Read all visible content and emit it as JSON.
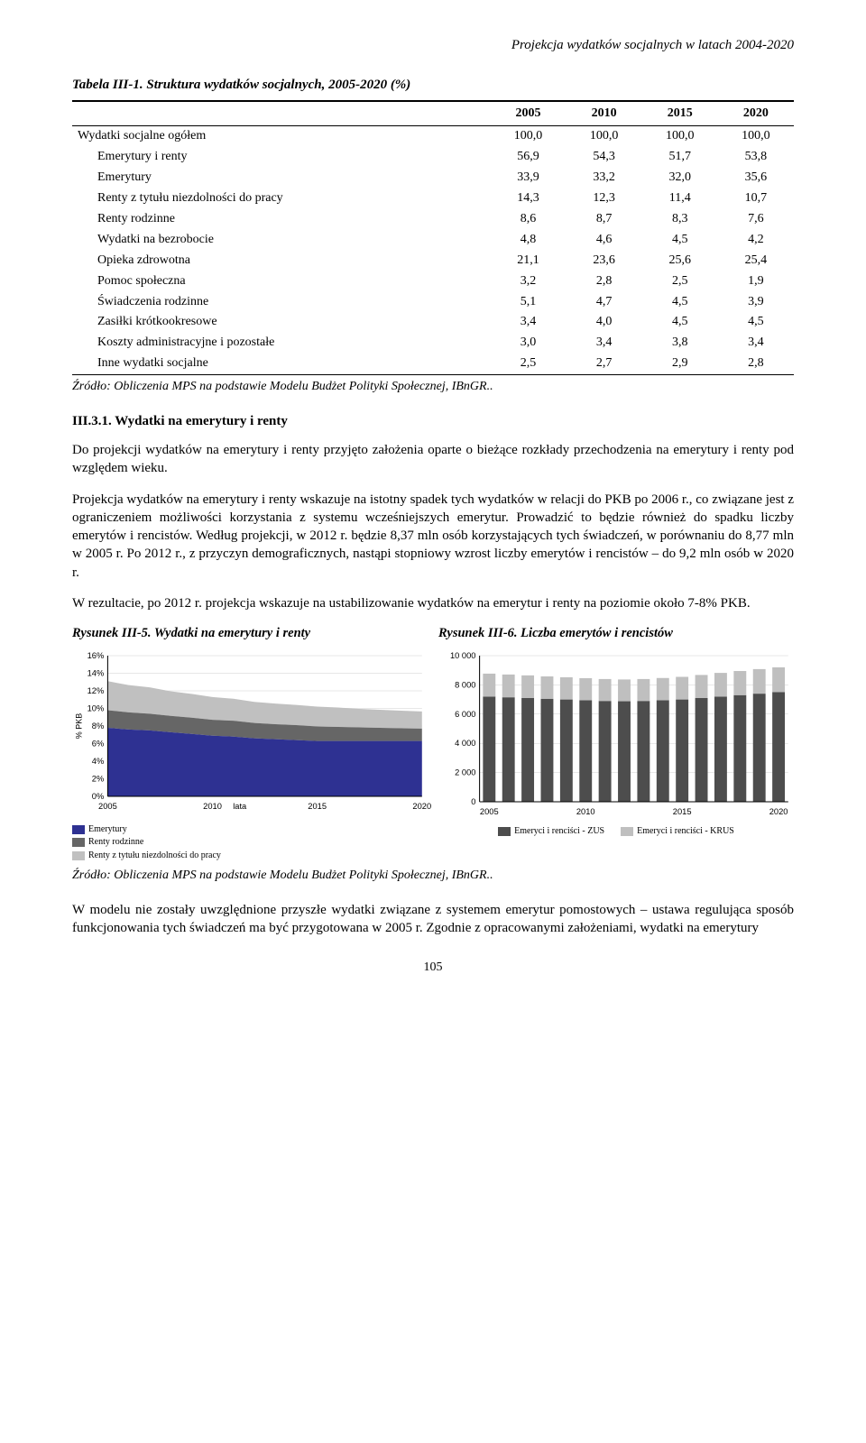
{
  "header": {
    "title": "Projekcja wydatków socjalnych w latach 2004-2020"
  },
  "table": {
    "caption": "Tabela III-1. Struktura wydatków socjalnych, 2005-2020 (%)",
    "columns": [
      "2005",
      "2010",
      "2015",
      "2020"
    ],
    "rows": [
      {
        "label": "Wydatki socjalne ogółem",
        "indent": false,
        "vals": [
          "100,0",
          "100,0",
          "100,0",
          "100,0"
        ]
      },
      {
        "label": "Emerytury i renty",
        "indent": true,
        "vals": [
          "56,9",
          "54,3",
          "51,7",
          "53,8"
        ]
      },
      {
        "label": "Emerytury",
        "indent": true,
        "vals": [
          "33,9",
          "33,2",
          "32,0",
          "35,6"
        ]
      },
      {
        "label": "Renty z tytułu niezdolności do pracy",
        "indent": true,
        "vals": [
          "14,3",
          "12,3",
          "11,4",
          "10,7"
        ]
      },
      {
        "label": "Renty rodzinne",
        "indent": true,
        "vals": [
          "8,6",
          "8,7",
          "8,3",
          "7,6"
        ]
      },
      {
        "label": "Wydatki na bezrobocie",
        "indent": true,
        "vals": [
          "4,8",
          "4,6",
          "4,5",
          "4,2"
        ]
      },
      {
        "label": "Opieka zdrowotna",
        "indent": true,
        "vals": [
          "21,1",
          "23,6",
          "25,6",
          "25,4"
        ]
      },
      {
        "label": "Pomoc społeczna",
        "indent": true,
        "vals": [
          "3,2",
          "2,8",
          "2,5",
          "1,9"
        ]
      },
      {
        "label": "Świadczenia rodzinne",
        "indent": true,
        "vals": [
          "5,1",
          "4,7",
          "4,5",
          "3,9"
        ]
      },
      {
        "label": "Zasiłki krótkookresowe",
        "indent": true,
        "vals": [
          "3,4",
          "4,0",
          "4,5",
          "4,5"
        ]
      },
      {
        "label": "Koszty administracyjne i pozostałe",
        "indent": true,
        "vals": [
          "3,0",
          "3,4",
          "3,8",
          "3,4"
        ]
      },
      {
        "label": "Inne wydatki socjalne",
        "indent": true,
        "vals": [
          "2,5",
          "2,7",
          "2,9",
          "2,8"
        ]
      }
    ]
  },
  "source": "Źródło: Obliczenia MPS na podstawie Modelu Budżet Polityki Społecznej, IBnGR..",
  "section": {
    "head": "III.3.1. Wydatki na emerytury i renty"
  },
  "para1": "Do projekcji wydatków na emerytury i renty przyjęto założenia oparte o bieżące rozkłady przechodzenia na emerytury i renty pod względem wieku.",
  "para2": "Projekcja wydatków na emerytury i renty wskazuje na istotny spadek tych wydatków w relacji do PKB po 2006 r., co związane jest z ograniczeniem możliwości korzystania z systemu wcześniejszych emerytur. Prowadzić to będzie również do spadku liczby emerytów i rencistów. Według projekcji, w 2012 r. będzie 8,37 mln osób korzystających tych świadczeń, w porównaniu do 8,77 mln w 2005 r. Po 2012 r., z przyczyn demograficznych, nastąpi stopniowy wzrost liczby emerytów i rencistów – do 9,2 mln osób w 2020 r.",
  "para3": "W rezultacie, po 2012 r. projekcja wskazuje na ustabilizowanie wydatków na emerytur i renty na poziomie około 7-8% PKB.",
  "chart5": {
    "title": "Rysunek III-5. Wydatki na emerytury i renty",
    "type": "area",
    "xlabel": "lata",
    "ylabel": "% PKB",
    "yticks": [
      "0%",
      "2%",
      "4%",
      "6%",
      "8%",
      "10%",
      "12%",
      "14%",
      "16%"
    ],
    "ylim": [
      0,
      16
    ],
    "xticks": [
      "2005",
      "2010",
      "2015",
      "2020"
    ],
    "xlim": [
      2005,
      2020
    ],
    "series": [
      {
        "name": "Emerytury",
        "color": "#2e3192",
        "values": [
          7.8,
          7.6,
          7.5,
          7.3,
          7.1,
          6.9,
          6.8,
          6.6,
          6.5,
          6.4,
          6.3,
          6.3,
          6.3,
          6.3,
          6.3,
          6.3
        ]
      },
      {
        "name": "Renty rodzinne",
        "color": "#666666",
        "values": [
          2.0,
          1.95,
          1.9,
          1.85,
          1.85,
          1.8,
          1.8,
          1.75,
          1.7,
          1.7,
          1.65,
          1.6,
          1.55,
          1.5,
          1.45,
          1.4
        ]
      },
      {
        "name": "Renty z tytułu niezdolności do pracy",
        "color": "#c0c0c0",
        "values": [
          3.3,
          3.1,
          3.0,
          2.8,
          2.7,
          2.6,
          2.5,
          2.4,
          2.35,
          2.3,
          2.25,
          2.2,
          2.1,
          2.05,
          2.0,
          1.95
        ]
      }
    ],
    "background": "#ffffff",
    "grid_color": "#d0d0d0",
    "axis_fontsize": 9
  },
  "chart6": {
    "title": "Rysunek III-6. Liczba emerytów i rencistów",
    "type": "stacked-bar",
    "yticks": [
      "0",
      "2 000",
      "4 000",
      "6 000",
      "8 000",
      "10 000"
    ],
    "ylim": [
      0,
      10000
    ],
    "xticks": [
      "2005",
      "2010",
      "2015",
      "2020"
    ],
    "years": [
      2005,
      2006,
      2007,
      2008,
      2009,
      2010,
      2011,
      2012,
      2013,
      2014,
      2015,
      2016,
      2017,
      2018,
      2019,
      2020
    ],
    "series": [
      {
        "name": "Emeryci i renciści - ZUS",
        "color": "#4d4d4d",
        "values": [
          7200,
          7150,
          7100,
          7050,
          7000,
          6950,
          6900,
          6880,
          6900,
          6950,
          7000,
          7100,
          7200,
          7300,
          7400,
          7500
        ]
      },
      {
        "name": "Emeryci i renciści - KRUS",
        "color": "#bfbfbf",
        "values": [
          1570,
          1560,
          1550,
          1530,
          1520,
          1510,
          1500,
          1490,
          1500,
          1520,
          1550,
          1580,
          1620,
          1650,
          1680,
          1700
        ]
      }
    ],
    "background": "#ffffff",
    "grid_color": "#d0d0d0",
    "axis_fontsize": 9,
    "bar_width": 0.65
  },
  "para4": "W modelu nie zostały uwzględnione przyszłe wydatki związane z systemem emerytur pomostowych – ustawa regulująca sposób funkcjonowania tych świadczeń ma być przygotowana w 2005 r. Zgodnie z opracowanymi założeniami, wydatki na emerytury",
  "page_num": "105"
}
